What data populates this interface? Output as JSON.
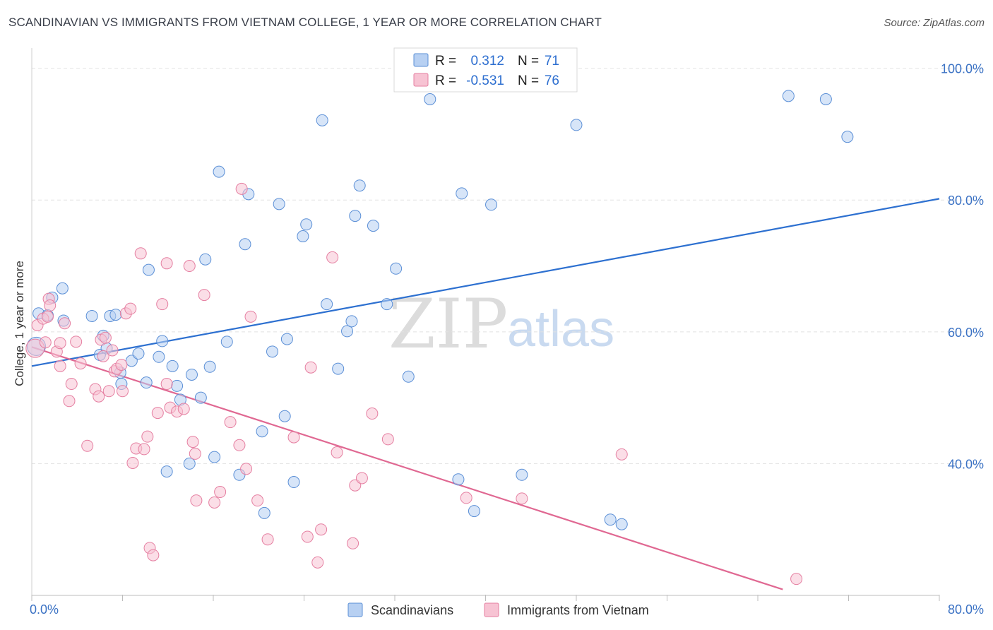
{
  "header": {
    "title": "SCANDINAVIAN VS IMMIGRANTS FROM VIETNAM COLLEGE, 1 YEAR OR MORE CORRELATION CHART",
    "source": "Source: ZipAtlas.com"
  },
  "watermark": {
    "zip": "ZIP",
    "atlas": "atlas"
  },
  "legend": {
    "r_label": "R =",
    "n_label": "N =",
    "rows": [
      {
        "r": "0.312",
        "n": "71"
      },
      {
        "r": "-0.531",
        "n": "76"
      }
    ]
  },
  "colors": {
    "blue_fill": "#b7d0f2",
    "blue_stroke": "#5b8fd6",
    "blue_line": "#2d70d0",
    "pink_fill": "#f7c3d3",
    "pink_stroke": "#e57fa1",
    "pink_line": "#e06892"
  },
  "chart_data": {
    "type": "scatter",
    "title": "SCANDINAVIAN VS IMMIGRANTS FROM VIETNAM COLLEGE, 1 YEAR OR MORE CORRELATION CHART",
    "xlabel": "",
    "ylabel": "College, 1 year or more",
    "xlim": [
      0,
      80
    ],
    "ylim": [
      20,
      102
    ],
    "x_tick_labels": [
      "0.0%",
      "80.0%"
    ],
    "y_ticks": [
      40,
      60,
      80,
      100
    ],
    "y_tick_labels": [
      "40.0%",
      "60.0%",
      "80.0%",
      "100.0%"
    ],
    "grid": true,
    "legend_position": "top-center",
    "series": [
      {
        "name": "Scandinavians",
        "r": 0.312,
        "n": 71,
        "trend": {
          "x": [
            0,
            80
          ],
          "y": [
            54.8,
            80.2
          ]
        },
        "points": [
          [
            0.4,
            57.8
          ],
          [
            0.6,
            62.8
          ],
          [
            1.4,
            62.5
          ],
          [
            1.8,
            65.2
          ],
          [
            2.8,
            61.7
          ],
          [
            2.7,
            66.6
          ],
          [
            5.3,
            62.4
          ],
          [
            6.0,
            56.5
          ],
          [
            6.6,
            57.5
          ],
          [
            6.3,
            59.4
          ],
          [
            6.9,
            62.4
          ],
          [
            7.4,
            62.6
          ],
          [
            7.8,
            53.8
          ],
          [
            7.9,
            52.1
          ],
          [
            8.8,
            55.6
          ],
          [
            9.4,
            56.7
          ],
          [
            10.1,
            52.3
          ],
          [
            10.3,
            69.4
          ],
          [
            11.2,
            56.2
          ],
          [
            11.5,
            58.6
          ],
          [
            11.9,
            38.8
          ],
          [
            12.4,
            54.8
          ],
          [
            12.8,
            51.8
          ],
          [
            13.1,
            49.7
          ],
          [
            13.9,
            40.0
          ],
          [
            14.1,
            53.5
          ],
          [
            14.9,
            50.0
          ],
          [
            15.3,
            71.0
          ],
          [
            15.7,
            54.7
          ],
          [
            16.1,
            41.0
          ],
          [
            16.5,
            84.3
          ],
          [
            17.2,
            58.5
          ],
          [
            18.3,
            38.3
          ],
          [
            18.8,
            73.3
          ],
          [
            19.1,
            80.9
          ],
          [
            20.3,
            44.9
          ],
          [
            20.5,
            32.5
          ],
          [
            21.2,
            57.0
          ],
          [
            21.8,
            79.4
          ],
          [
            22.3,
            47.2
          ],
          [
            22.5,
            58.9
          ],
          [
            23.1,
            37.2
          ],
          [
            23.9,
            74.5
          ],
          [
            24.2,
            76.3
          ],
          [
            25.6,
            92.1
          ],
          [
            26.0,
            64.2
          ],
          [
            27.0,
            54.4
          ],
          [
            27.8,
            60.1
          ],
          [
            28.2,
            61.6
          ],
          [
            28.5,
            77.6
          ],
          [
            28.9,
            82.2
          ],
          [
            30.1,
            76.1
          ],
          [
            31.3,
            64.2
          ],
          [
            32.1,
            69.6
          ],
          [
            33.2,
            53.2
          ],
          [
            35.1,
            95.3
          ],
          [
            37.6,
            37.6
          ],
          [
            37.9,
            81.0
          ],
          [
            39.0,
            32.8
          ],
          [
            40.5,
            79.3
          ],
          [
            43.2,
            38.3
          ],
          [
            44.3,
            100.1
          ],
          [
            48.0,
            91.4
          ],
          [
            51.0,
            31.5
          ],
          [
            52.0,
            30.8
          ],
          [
            66.7,
            95.8
          ],
          [
            70.0,
            95.3
          ],
          [
            71.9,
            89.6
          ]
        ]
      },
      {
        "name": "Immigrants from Vietnam",
        "r": -0.531,
        "n": 76,
        "trend": {
          "x": [
            0,
            66.2
          ],
          "y": [
            57.7,
            20.9
          ]
        },
        "points": [
          [
            0.3,
            57.5
          ],
          [
            0.5,
            61.0
          ],
          [
            1.0,
            62.0
          ],
          [
            1.2,
            58.4
          ],
          [
            1.4,
            62.3
          ],
          [
            1.5,
            65.0
          ],
          [
            1.6,
            64.0
          ],
          [
            2.2,
            57.0
          ],
          [
            2.5,
            58.3
          ],
          [
            2.5,
            54.8
          ],
          [
            2.9,
            61.3
          ],
          [
            3.3,
            49.5
          ],
          [
            3.5,
            52.1
          ],
          [
            3.9,
            58.5
          ],
          [
            4.3,
            55.2
          ],
          [
            4.9,
            42.7
          ],
          [
            5.6,
            51.3
          ],
          [
            5.9,
            50.2
          ],
          [
            6.1,
            58.8
          ],
          [
            6.3,
            56.3
          ],
          [
            6.5,
            59.1
          ],
          [
            6.8,
            51.0
          ],
          [
            7.1,
            57.2
          ],
          [
            7.3,
            54.0
          ],
          [
            7.5,
            54.4
          ],
          [
            7.9,
            55.0
          ],
          [
            8.0,
            51.0
          ],
          [
            8.3,
            62.8
          ],
          [
            8.7,
            63.5
          ],
          [
            8.9,
            40.1
          ],
          [
            9.2,
            42.3
          ],
          [
            9.6,
            71.9
          ],
          [
            9.9,
            42.2
          ],
          [
            10.2,
            44.1
          ],
          [
            10.4,
            27.2
          ],
          [
            10.7,
            26.1
          ],
          [
            11.1,
            47.7
          ],
          [
            11.5,
            64.2
          ],
          [
            11.9,
            70.4
          ],
          [
            11.9,
            52.1
          ],
          [
            12.2,
            48.5
          ],
          [
            12.8,
            47.9
          ],
          [
            13.4,
            48.3
          ],
          [
            13.9,
            70.0
          ],
          [
            14.2,
            43.3
          ],
          [
            14.4,
            41.5
          ],
          [
            14.5,
            34.4
          ],
          [
            15.2,
            65.6
          ],
          [
            16.1,
            34.1
          ],
          [
            16.6,
            35.7
          ],
          [
            17.5,
            46.3
          ],
          [
            18.3,
            42.8
          ],
          [
            18.5,
            81.7
          ],
          [
            18.9,
            39.2
          ],
          [
            19.3,
            62.3
          ],
          [
            19.9,
            34.4
          ],
          [
            20.8,
            28.5
          ],
          [
            23.1,
            44.0
          ],
          [
            24.3,
            28.9
          ],
          [
            24.6,
            54.6
          ],
          [
            25.2,
            25.0
          ],
          [
            25.5,
            30.0
          ],
          [
            26.5,
            71.3
          ],
          [
            26.9,
            41.7
          ],
          [
            28.3,
            27.9
          ],
          [
            28.5,
            36.7
          ],
          [
            29.1,
            37.8
          ],
          [
            30.0,
            47.6
          ],
          [
            31.4,
            43.7
          ],
          [
            38.3,
            34.8
          ],
          [
            43.2,
            34.7
          ],
          [
            52.0,
            41.4
          ],
          [
            67.4,
            22.5
          ]
        ]
      }
    ]
  },
  "bottom_legend": [
    "Scandinavians",
    "Immigrants from Vietnam"
  ]
}
